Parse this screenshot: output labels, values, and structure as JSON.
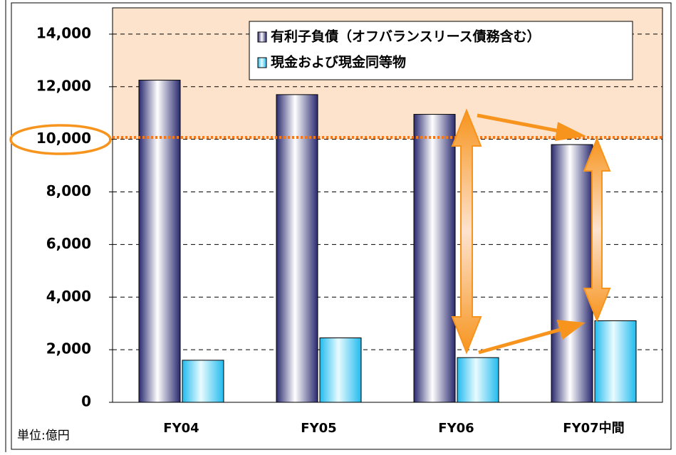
{
  "chart_data": {
    "type": "bar",
    "categories": [
      "FY04",
      "FY05",
      "FY06",
      "FY07中間"
    ],
    "series": [
      {
        "name": "有利子負債（オフバランスリース債務含む）",
        "color": "#3a3a80",
        "values": [
          12250,
          11700,
          10950,
          9800
        ]
      },
      {
        "name": "現金および現金同等物",
        "color": "#22bbee",
        "values": [
          1600,
          2450,
          1700,
          3100
        ]
      }
    ],
    "ylim": [
      0,
      15000
    ],
    "yticks": [
      0,
      {
        "value": 2000,
        "label": "2,000"
      },
      {
        "value": 4000,
        "label": "4,000"
      },
      {
        "value": 6000,
        "label": "6,000"
      },
      {
        "value": 8000,
        "label": "8,000"
      },
      {
        "value": 10000,
        "label": "10,000"
      },
      {
        "value": 12000,
        "label": "12,000"
      },
      {
        "value": 14000,
        "label": "14,000"
      }
    ],
    "grid": true,
    "legend": "top-right",
    "unit_label": "単位:億円"
  }
}
